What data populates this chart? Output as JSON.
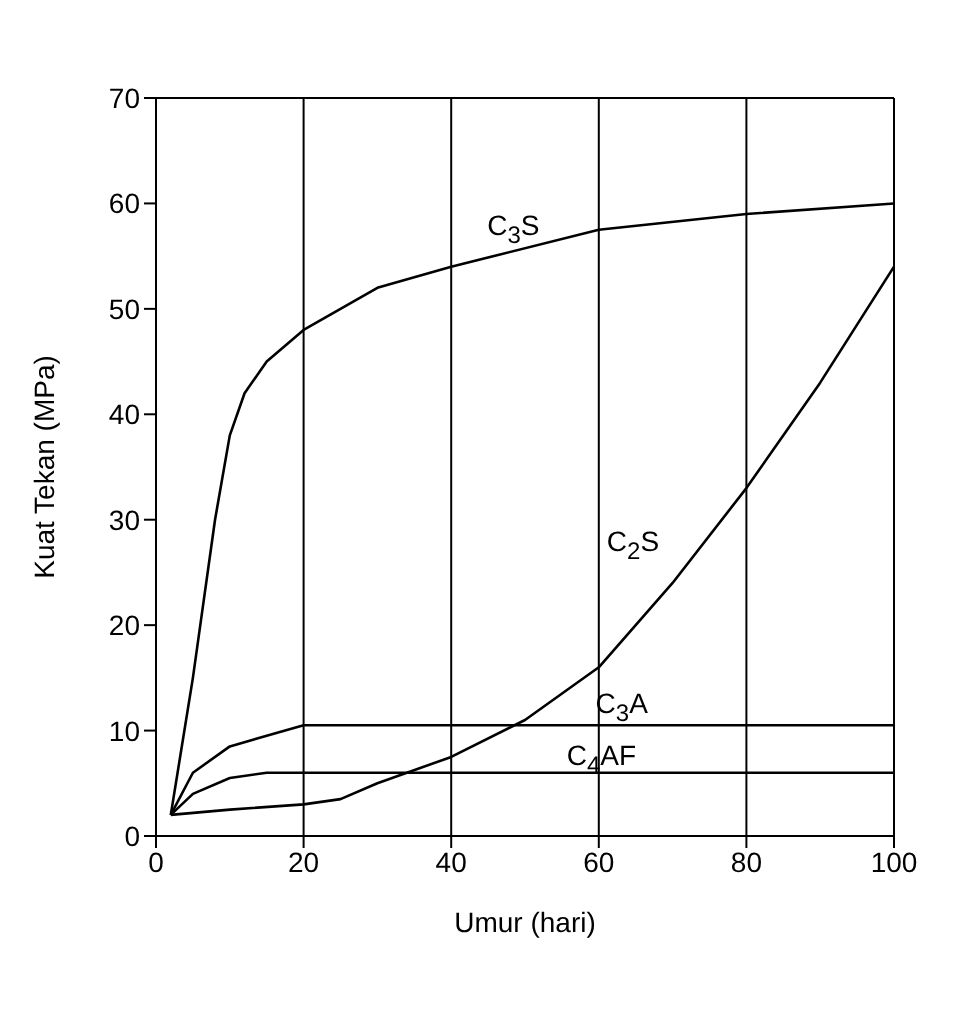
{
  "chart_data": {
    "type": "line",
    "xlabel": "Umur (hari)",
    "ylabel": "Kuat Tekan (MPa)",
    "xlim": [
      0,
      100
    ],
    "xticks": [
      0,
      20,
      40,
      60,
      80,
      100
    ],
    "ylim": [
      0,
      70
    ],
    "yticks": [
      0,
      10,
      20,
      30,
      40,
      50,
      60,
      70
    ],
    "grid": "x",
    "marker": "none",
    "line_style": "solid",
    "series": [
      {
        "name": "C$_{3}$S",
        "color": "#000000",
        "x": [
          2,
          5,
          8,
          10,
          12,
          15,
          20,
          30,
          40,
          60,
          80,
          100
        ],
        "values": [
          2,
          15,
          30,
          38,
          42,
          45,
          48,
          52,
          54,
          57.5,
          59,
          60
        ]
      },
      {
        "name": "C$_{2}$S",
        "color": "#000000",
        "x": [
          2,
          10,
          20,
          25,
          30,
          40,
          50,
          60,
          70,
          80,
          90,
          100
        ],
        "values": [
          2,
          2.5,
          3,
          3.5,
          5,
          7.5,
          11,
          16,
          24,
          33,
          43,
          54
        ]
      },
      {
        "name": "C$_{3}$A",
        "color": "#000000",
        "x": [
          2,
          5,
          10,
          15,
          20,
          100
        ],
        "values": [
          2,
          6,
          8.5,
          9.5,
          10.5,
          10.5
        ]
      },
      {
        "name": "C$_{4}$AF",
        "color": "#000000",
        "x": [
          2,
          5,
          10,
          15,
          100
        ],
        "values": [
          2,
          4,
          5.5,
          6,
          6
        ]
      }
    ]
  }
}
